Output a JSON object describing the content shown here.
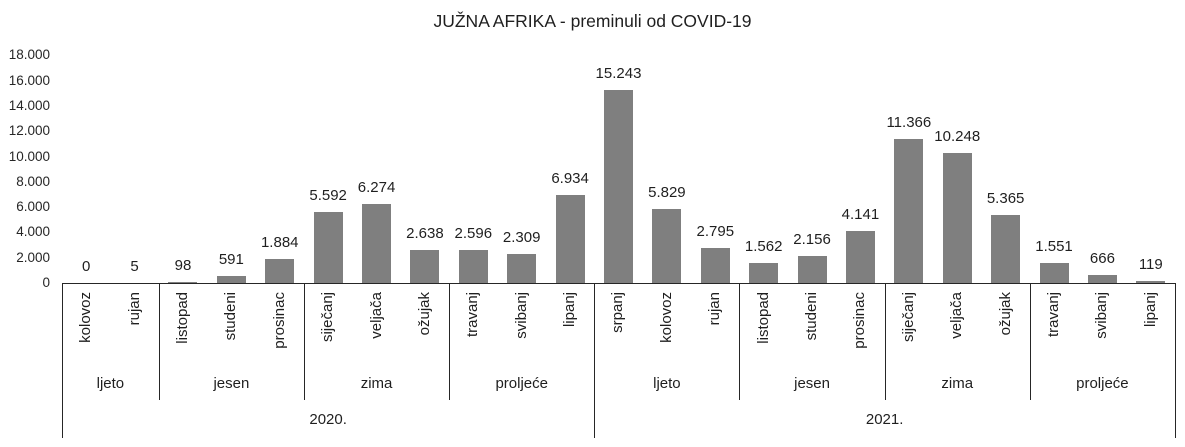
{
  "chart_data": {
    "type": "bar",
    "title": "JUŽNA AFRIKA - preminuli od COVID-19",
    "xlabel": "",
    "ylabel": "",
    "ylim": [
      0,
      18000
    ],
    "grid": false,
    "legend": false,
    "bar_color": "#7f7f7f",
    "axis_line_color": "#262626",
    "yticks": [
      {
        "value": 0,
        "label": "0"
      },
      {
        "value": 2000,
        "label": "2.000"
      },
      {
        "value": 4000,
        "label": "4.000"
      },
      {
        "value": 6000,
        "label": "6.000"
      },
      {
        "value": 8000,
        "label": "8.000"
      },
      {
        "value": 10000,
        "label": "10.000"
      },
      {
        "value": 12000,
        "label": "12.000"
      },
      {
        "value": 14000,
        "label": "14.000"
      },
      {
        "value": 16000,
        "label": "16.000"
      },
      {
        "value": 18000,
        "label": "18.000"
      }
    ],
    "years": [
      {
        "label": "2020.",
        "seasons": [
          {
            "label": "ljeto",
            "months": [
              {
                "name": "kolovoz",
                "value": 0,
                "display": "0"
              },
              {
                "name": "rujan",
                "value": 5,
                "display": "5"
              }
            ]
          },
          {
            "label": "jesen",
            "months": [
              {
                "name": "listopad",
                "value": 98,
                "display": "98"
              },
              {
                "name": "studeni",
                "value": 591,
                "display": "591"
              },
              {
                "name": "prosinac",
                "value": 1884,
                "display": "1.884"
              }
            ]
          },
          {
            "label": "zima",
            "months": [
              {
                "name": "siječanj",
                "value": 5592,
                "display": "5.592"
              },
              {
                "name": "veljača",
                "value": 6274,
                "display": "6.274"
              },
              {
                "name": "ožujak",
                "value": 2638,
                "display": "2.638"
              }
            ]
          },
          {
            "label": "proljeće",
            "months": [
              {
                "name": "travanj",
                "value": 2596,
                "display": "2.596"
              },
              {
                "name": "svibanj",
                "value": 2309,
                "display": "2.309"
              },
              {
                "name": "lipanj",
                "value": 6934,
                "display": "6.934"
              }
            ]
          }
        ]
      },
      {
        "label": "2021.",
        "seasons": [
          {
            "label": "ljeto",
            "months": [
              {
                "name": "srpanj",
                "value": 15243,
                "display": "15.243"
              },
              {
                "name": "kolovoz",
                "value": 5829,
                "display": "5.829"
              },
              {
                "name": "rujan",
                "value": 2795,
                "display": "2.795"
              }
            ]
          },
          {
            "label": "jesen",
            "months": [
              {
                "name": "listopad",
                "value": 1562,
                "display": "1.562"
              },
              {
                "name": "studeni",
                "value": 2156,
                "display": "2.156"
              },
              {
                "name": "prosinac",
                "value": 4141,
                "display": "4.141"
              }
            ]
          },
          {
            "label": "zima",
            "months": [
              {
                "name": "siječanj",
                "value": 11366,
                "display": "11.366"
              },
              {
                "name": "veljača",
                "value": 10248,
                "display": "10.248"
              },
              {
                "name": "ožujak",
                "value": 5365,
                "display": "5.365"
              }
            ]
          },
          {
            "label": "proljeće",
            "months": [
              {
                "name": "travanj",
                "value": 1551,
                "display": "1.551"
              },
              {
                "name": "svibanj",
                "value": 666,
                "display": "666"
              },
              {
                "name": "lipanj",
                "value": 119,
                "display": "119"
              }
            ]
          }
        ]
      }
    ]
  }
}
